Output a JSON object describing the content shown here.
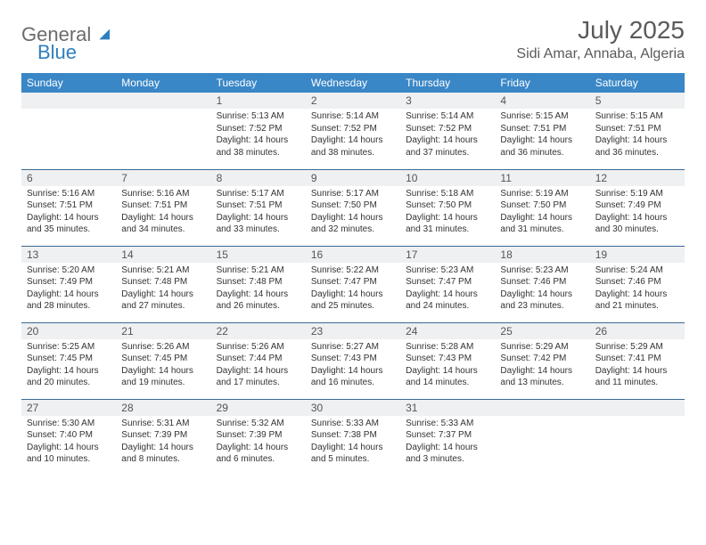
{
  "brand": {
    "part1": "General",
    "part2": "Blue"
  },
  "title": "July 2025",
  "location": "Sidi Amar, Annaba, Algeria",
  "colors": {
    "header_bg": "#3a87c7",
    "header_fg": "#ffffff",
    "daynum_bg": "#eef0f2",
    "row_divider": "#3a6a95",
    "brand_gray": "#6b6b6b",
    "brand_blue": "#2f7fbf"
  },
  "weekdays": [
    "Sunday",
    "Monday",
    "Tuesday",
    "Wednesday",
    "Thursday",
    "Friday",
    "Saturday"
  ],
  "weeks": [
    [
      null,
      null,
      {
        "d": "1",
        "sr": "5:13 AM",
        "ss": "7:52 PM",
        "dl": "14 hours and 38 minutes."
      },
      {
        "d": "2",
        "sr": "5:14 AM",
        "ss": "7:52 PM",
        "dl": "14 hours and 38 minutes."
      },
      {
        "d": "3",
        "sr": "5:14 AM",
        "ss": "7:52 PM",
        "dl": "14 hours and 37 minutes."
      },
      {
        "d": "4",
        "sr": "5:15 AM",
        "ss": "7:51 PM",
        "dl": "14 hours and 36 minutes."
      },
      {
        "d": "5",
        "sr": "5:15 AM",
        "ss": "7:51 PM",
        "dl": "14 hours and 36 minutes."
      }
    ],
    [
      {
        "d": "6",
        "sr": "5:16 AM",
        "ss": "7:51 PM",
        "dl": "14 hours and 35 minutes."
      },
      {
        "d": "7",
        "sr": "5:16 AM",
        "ss": "7:51 PM",
        "dl": "14 hours and 34 minutes."
      },
      {
        "d": "8",
        "sr": "5:17 AM",
        "ss": "7:51 PM",
        "dl": "14 hours and 33 minutes."
      },
      {
        "d": "9",
        "sr": "5:17 AM",
        "ss": "7:50 PM",
        "dl": "14 hours and 32 minutes."
      },
      {
        "d": "10",
        "sr": "5:18 AM",
        "ss": "7:50 PM",
        "dl": "14 hours and 31 minutes."
      },
      {
        "d": "11",
        "sr": "5:19 AM",
        "ss": "7:50 PM",
        "dl": "14 hours and 31 minutes."
      },
      {
        "d": "12",
        "sr": "5:19 AM",
        "ss": "7:49 PM",
        "dl": "14 hours and 30 minutes."
      }
    ],
    [
      {
        "d": "13",
        "sr": "5:20 AM",
        "ss": "7:49 PM",
        "dl": "14 hours and 28 minutes."
      },
      {
        "d": "14",
        "sr": "5:21 AM",
        "ss": "7:48 PM",
        "dl": "14 hours and 27 minutes."
      },
      {
        "d": "15",
        "sr": "5:21 AM",
        "ss": "7:48 PM",
        "dl": "14 hours and 26 minutes."
      },
      {
        "d": "16",
        "sr": "5:22 AM",
        "ss": "7:47 PM",
        "dl": "14 hours and 25 minutes."
      },
      {
        "d": "17",
        "sr": "5:23 AM",
        "ss": "7:47 PM",
        "dl": "14 hours and 24 minutes."
      },
      {
        "d": "18",
        "sr": "5:23 AM",
        "ss": "7:46 PM",
        "dl": "14 hours and 23 minutes."
      },
      {
        "d": "19",
        "sr": "5:24 AM",
        "ss": "7:46 PM",
        "dl": "14 hours and 21 minutes."
      }
    ],
    [
      {
        "d": "20",
        "sr": "5:25 AM",
        "ss": "7:45 PM",
        "dl": "14 hours and 20 minutes."
      },
      {
        "d": "21",
        "sr": "5:26 AM",
        "ss": "7:45 PM",
        "dl": "14 hours and 19 minutes."
      },
      {
        "d": "22",
        "sr": "5:26 AM",
        "ss": "7:44 PM",
        "dl": "14 hours and 17 minutes."
      },
      {
        "d": "23",
        "sr": "5:27 AM",
        "ss": "7:43 PM",
        "dl": "14 hours and 16 minutes."
      },
      {
        "d": "24",
        "sr": "5:28 AM",
        "ss": "7:43 PM",
        "dl": "14 hours and 14 minutes."
      },
      {
        "d": "25",
        "sr": "5:29 AM",
        "ss": "7:42 PM",
        "dl": "14 hours and 13 minutes."
      },
      {
        "d": "26",
        "sr": "5:29 AM",
        "ss": "7:41 PM",
        "dl": "14 hours and 11 minutes."
      }
    ],
    [
      {
        "d": "27",
        "sr": "5:30 AM",
        "ss": "7:40 PM",
        "dl": "14 hours and 10 minutes."
      },
      {
        "d": "28",
        "sr": "5:31 AM",
        "ss": "7:39 PM",
        "dl": "14 hours and 8 minutes."
      },
      {
        "d": "29",
        "sr": "5:32 AM",
        "ss": "7:39 PM",
        "dl": "14 hours and 6 minutes."
      },
      {
        "d": "30",
        "sr": "5:33 AM",
        "ss": "7:38 PM",
        "dl": "14 hours and 5 minutes."
      },
      {
        "d": "31",
        "sr": "5:33 AM",
        "ss": "7:37 PM",
        "dl": "14 hours and 3 minutes."
      },
      null,
      null
    ]
  ],
  "labels": {
    "sunrise": "Sunrise:",
    "sunset": "Sunset:",
    "daylight": "Daylight:"
  }
}
